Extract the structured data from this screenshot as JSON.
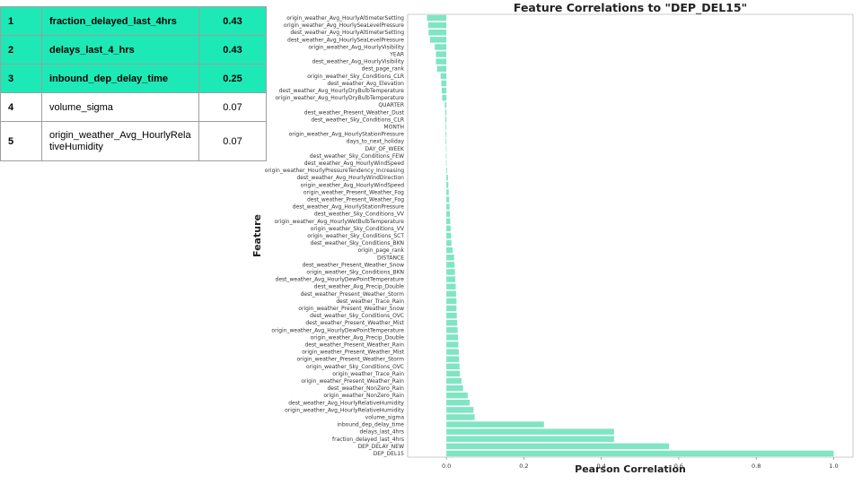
{
  "table": {
    "rows": [
      {
        "rank": "1",
        "feature": "fraction_delayed_last_4hrs",
        "value": "0.43",
        "highlight": true
      },
      {
        "rank": "2",
        "feature": "delays_last_4_hrs",
        "value": "0.43",
        "highlight": true
      },
      {
        "rank": "3",
        "feature": "inbound_dep_delay_time",
        "value": "0.25",
        "highlight": true
      },
      {
        "rank": "4",
        "feature": "volume_sigma",
        "value": "0.07",
        "highlight": false
      },
      {
        "rank": "5",
        "feature": "origin_weather_Avg_HourlyRelativeHumidity",
        "value": "0.07",
        "highlight": false
      }
    ]
  },
  "colors": {
    "bar": "#7fe5c2",
    "table_highlight": "#1de9b6",
    "spine": "#bdbdbd",
    "text": "#222222"
  },
  "chart_data": {
    "type": "bar",
    "orientation": "horizontal",
    "title": "Feature Correlations to \"DEP_DEL15\"",
    "xlabel": "Pearson Correlation",
    "ylabel": "Feature",
    "xlim": [
      -0.1,
      1.05
    ],
    "xticks": [
      0.0,
      0.2,
      0.4,
      0.6,
      0.8,
      1.0
    ],
    "xtick_labels": [
      "0.0",
      "0.2",
      "0.4",
      "0.6",
      "0.8",
      "1.0"
    ],
    "grid": false,
    "categories": [
      "origin_weather_Avg_HourlyAltimeterSetting",
      "origin_weather_Avg_HourlySeaLevelPressure",
      "dest_weather_Avg_HourlyAltimeterSetting",
      "dest_weather_Avg_HourlySeaLevelPressure",
      "origin_weather_Avg_HourlyVisibility",
      "YEAR",
      "dest_weather_Avg_HourlyVisibility",
      "dest_page_rank",
      "origin_weather_Sky_Conditions_CLR",
      "dest_weather_Avg_Elevation",
      "dest_weather_Avg_HourlyDryBulbTemperature",
      "origin_weather_Avg_HourlyDryBulbTemperature",
      "QUARTER",
      "dest_weather_Present_Weather_Dust",
      "dest_weather_Sky_Conditions_CLR",
      "MONTH",
      "origin_weather_Avg_HourlyStationPressure",
      "days_to_next_holiday",
      "DAY_OF_WEEK",
      "dest_weather_Sky_Conditions_FEW",
      "dest_weather_Avg_HourlyWindSpeed",
      "origin_weather_HourlyPressureTendency_Increasing",
      "dest_weather_Avg_HourlyWindDirection",
      "origin_weather_Avg_HourlyWindSpeed",
      "origin_weather_Present_Weather_Fog",
      "dest_weather_Present_Weather_Fog",
      "dest_weather_Avg_HourlyStationPressure",
      "dest_weather_Sky_Conditions_VV",
      "origin_weather_Avg_HourlyWetBulbTemperature",
      "origin_weather_Sky_Conditions_VV",
      "origin_weather_Sky_Conditions_SCT",
      "dest_weather_Sky_Conditions_BKN",
      "origin_page_rank",
      "DISTANCE",
      "dest_weather_Present_Weather_Snow",
      "origin_weather_Sky_Conditions_BKN",
      "dest_weather_Avg_HourlyDewPointTemperature",
      "dest_weather_Avg_Precip_Double",
      "dest_weather_Present_Weather_Storm",
      "dest_weather_Trace_Rain",
      "origin_weather_Present_Weather_Snow",
      "dest_weather_Sky_Conditions_OVC",
      "dest_weather_Present_Weather_Mist",
      "origin_weather_Avg_HourlyDewPointTemperature",
      "origin_weather_Avg_Precip_Double",
      "dest_weather_Present_Weather_Rain",
      "origin_weather_Present_Weather_Mist",
      "origin_weather_Present_Weather_Storm",
      "origin_weather_Sky_Conditions_OVC",
      "origin_weather_Trace_Rain",
      "origin_weather_Present_Weather_Rain",
      "dest_weather_NonZero_Rain",
      "origin_weather_NonZero_Rain",
      "dest_weather_Avg_HourlyRelativeHumidity",
      "origin_weather_Avg_HourlyRelativeHumidity",
      "volume_sigma",
      "inbound_dep_delay_time",
      "delays_last_4hrs",
      "fraction_delayed_last_4hrs",
      "DEP_DELAY_NEW",
      "DEP_DEL15"
    ],
    "values": [
      -0.05,
      -0.047,
      -0.046,
      -0.042,
      -0.03,
      -0.027,
      -0.027,
      -0.024,
      -0.015,
      -0.013,
      -0.012,
      -0.011,
      -0.004,
      -0.003,
      -0.003,
      -0.002,
      -0.002,
      -0.002,
      -0.001,
      -0.001,
      -0.001,
      0.002,
      0.004,
      0.005,
      0.006,
      0.007,
      0.008,
      0.009,
      0.01,
      0.011,
      0.012,
      0.013,
      0.016,
      0.02,
      0.021,
      0.022,
      0.023,
      0.024,
      0.025,
      0.026,
      0.026,
      0.027,
      0.028,
      0.029,
      0.03,
      0.031,
      0.032,
      0.033,
      0.034,
      0.035,
      0.039,
      0.043,
      0.055,
      0.06,
      0.07,
      0.073,
      0.252,
      0.433,
      0.433,
      0.575,
      1.0
    ]
  }
}
